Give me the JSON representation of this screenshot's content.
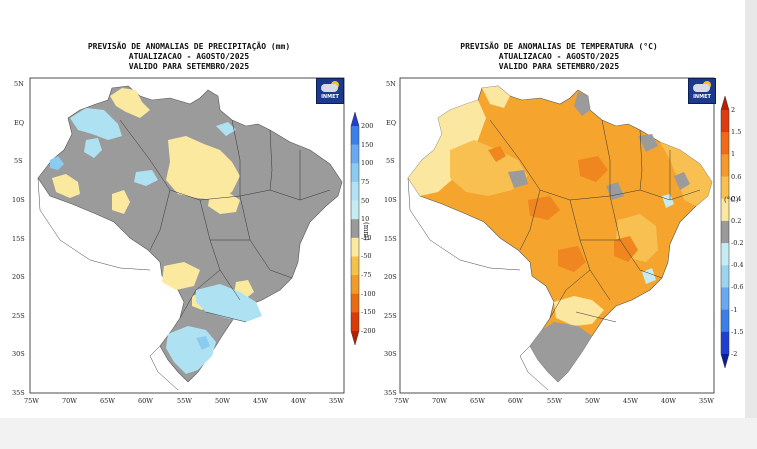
{
  "left_panel": {
    "title_line1": "PREVISÃO DE ANOMALIAS DE PRECIPITAÇÃO (mm)",
    "title_line2": "ATUALIZACAO - AGOSTO/2025",
    "title_line3": "VALIDO PARA SETEMBRO/2025",
    "unit": "(mm)",
    "colorbar_labels": [
      "200",
      "150",
      "100",
      "75",
      "50",
      "10",
      "-10",
      "-50",
      "-75",
      "-100",
      "-150",
      "-200"
    ],
    "colorbar_colors": [
      "#1f3fd0",
      "#3b7fe8",
      "#6aa8f0",
      "#8ccbf0",
      "#b4e2f5",
      "#c6ecf2",
      "#9a9a9a",
      "#fbe9a0",
      "#f4c24a",
      "#f09a2a",
      "#e86a12",
      "#d83a08",
      "#b82000"
    ]
  },
  "right_panel": {
    "title_line1": "PREVISÃO DE ANOMALIAS DE TEMPERATURA (°C)",
    "title_line2": "ATUALIZACAO - AGOSTO/2025",
    "title_line3": "VALIDO PARA SETEMBRO/2025",
    "unit": "(°C)",
    "colorbar_labels": [
      "2",
      "1.5",
      "1",
      "0.6",
      "0.4",
      "0.2",
      "-0.2",
      "-0.4",
      "-0.6",
      "-1",
      "-1.5",
      "-2"
    ],
    "colorbar_colors": [
      "#b82000",
      "#e03a10",
      "#f06a18",
      "#f59a2a",
      "#f8c050",
      "#fbe7a0",
      "#9a9a9a",
      "#c6ecf2",
      "#9cd4f0",
      "#6aa8f0",
      "#3b7fe8",
      "#1f3fd0",
      "#0a1e9a"
    ]
  },
  "logo_text": "INMET",
  "lat_labels": [
    "5N",
    "EQ",
    "5S",
    "10S",
    "15S",
    "20S",
    "25S",
    "30S",
    "35S"
  ],
  "lon_labels": [
    "75W",
    "70W",
    "65W",
    "60W",
    "55W",
    "50W",
    "45W",
    "40W",
    "35W"
  ],
  "map_colors": {
    "gray": "#9b9b9b",
    "light_yellow": "#fbe9a0",
    "light_blue": "#aee2f2",
    "blue": "#8ccbf0",
    "orange": "#f5a42e",
    "light_orange": "#f8c050",
    "dark_orange": "#ef8620"
  }
}
